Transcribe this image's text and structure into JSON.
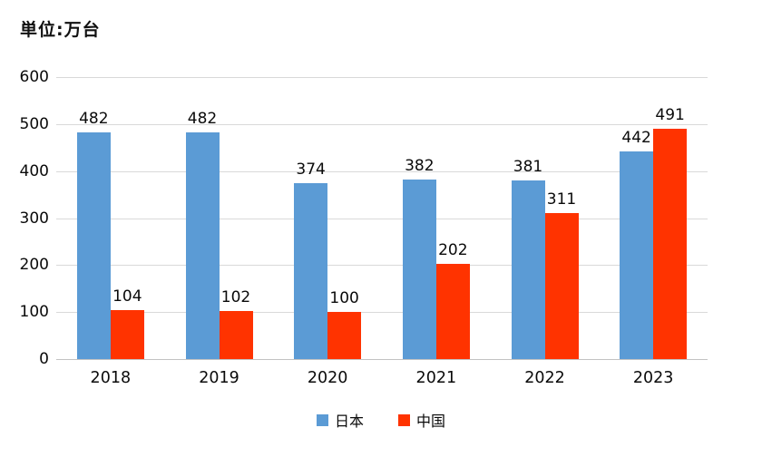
{
  "unit_label": "単位:万台",
  "chart_data": {
    "type": "bar",
    "title": "",
    "xlabel": "",
    "ylabel": "単位:万台",
    "categories": [
      "2018",
      "2019",
      "2020",
      "2021",
      "2022",
      "2023"
    ],
    "series": [
      {
        "name": "日本",
        "color": "#5b9bd5",
        "values": [
          482,
          482,
          374,
          382,
          381,
          442
        ]
      },
      {
        "name": "中国",
        "color": "#ff3300",
        "values": [
          104,
          102,
          100,
          202,
          311,
          491
        ]
      }
    ],
    "ylim": [
      0,
      600
    ],
    "yticks": [
      0,
      100,
      200,
      300,
      400,
      500,
      600
    ],
    "grid": true,
    "gridline_color": "#d9d9d9",
    "value_label_color": "#0a0a0a",
    "legend_position": "bottom"
  }
}
